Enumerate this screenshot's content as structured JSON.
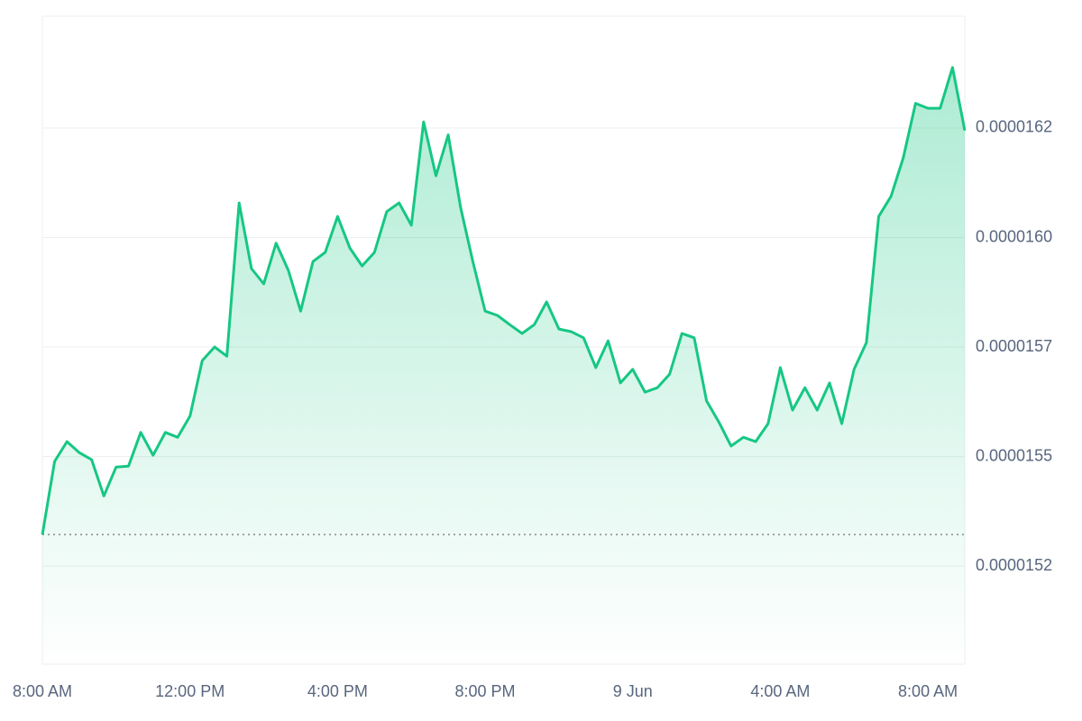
{
  "chart_data": {
    "type": "line",
    "color": "#16c784",
    "grid": true,
    "ylim": [
      1.5026e-05,
      1.6505e-05
    ],
    "yticks": [
      {
        "value": 1.525e-05,
        "label": "0.0000152"
      },
      {
        "value": 1.55e-05,
        "label": "0.0000155"
      },
      {
        "value": 1.575e-05,
        "label": "0.0000157"
      },
      {
        "value": 1.6e-05,
        "label": "0.0000160"
      },
      {
        "value": 1.625e-05,
        "label": "0.0000162"
      }
    ],
    "categories": [
      "8:00 AM",
      null,
      null,
      null,
      null,
      null,
      null,
      null,
      null,
      null,
      null,
      null,
      "12:00 PM",
      null,
      null,
      null,
      null,
      null,
      null,
      null,
      null,
      null,
      null,
      null,
      "4:00 PM",
      null,
      null,
      null,
      null,
      null,
      null,
      null,
      null,
      null,
      null,
      null,
      "8:00 PM",
      null,
      null,
      null,
      null,
      null,
      null,
      null,
      null,
      null,
      null,
      null,
      "9 Jun",
      null,
      null,
      null,
      null,
      null,
      null,
      null,
      null,
      null,
      null,
      null,
      "4:00 AM",
      null,
      null,
      null,
      null,
      null,
      null,
      null,
      null,
      null,
      null,
      null,
      "8:00 AM",
      null,
      null,
      null
    ],
    "values": [
      1.5322e-05,
      1.5489e-05,
      1.5534e-05,
      1.5509e-05,
      1.5493e-05,
      1.541e-05,
      1.5476e-05,
      1.5478e-05,
      1.5555e-05,
      1.5503e-05,
      1.5555e-05,
      1.5544e-05,
      1.5592e-05,
      1.5719e-05,
      1.575e-05,
      1.5729e-05,
      1.6079e-05,
      1.5929e-05,
      1.5894e-05,
      1.5987e-05,
      1.5925e-05,
      1.5832e-05,
      1.5945e-05,
      1.5966e-05,
      1.6048e-05,
      1.5976e-05,
      1.5935e-05,
      1.5966e-05,
      1.6059e-05,
      1.6079e-05,
      1.6028e-05,
      1.6264e-05,
      1.6141e-05,
      1.6234e-05,
      1.6069e-05,
      1.5945e-05,
      1.5832e-05,
      1.5822e-05,
      1.5801e-05,
      1.5781e-05,
      1.5801e-05,
      1.5853e-05,
      1.5791e-05,
      1.5785e-05,
      1.5771e-05,
      1.5703e-05,
      1.5764e-05,
      1.5668e-05,
      1.5699e-05,
      1.5647e-05,
      1.5657e-05,
      1.5688e-05,
      1.5781e-05,
      1.5771e-05,
      1.5627e-05,
      1.5579e-05,
      1.5524e-05,
      1.5544e-05,
      1.5534e-05,
      1.5575e-05,
      1.5703e-05,
      1.5606e-05,
      1.5657e-05,
      1.5606e-05,
      1.5668e-05,
      1.5575e-05,
      1.5699e-05,
      1.576e-05,
      1.6048e-05,
      1.6094e-05,
      1.6182e-05,
      1.6306e-05,
      1.6295e-05,
      1.6295e-05,
      1.6388e-05,
      1.6244e-05
    ]
  }
}
